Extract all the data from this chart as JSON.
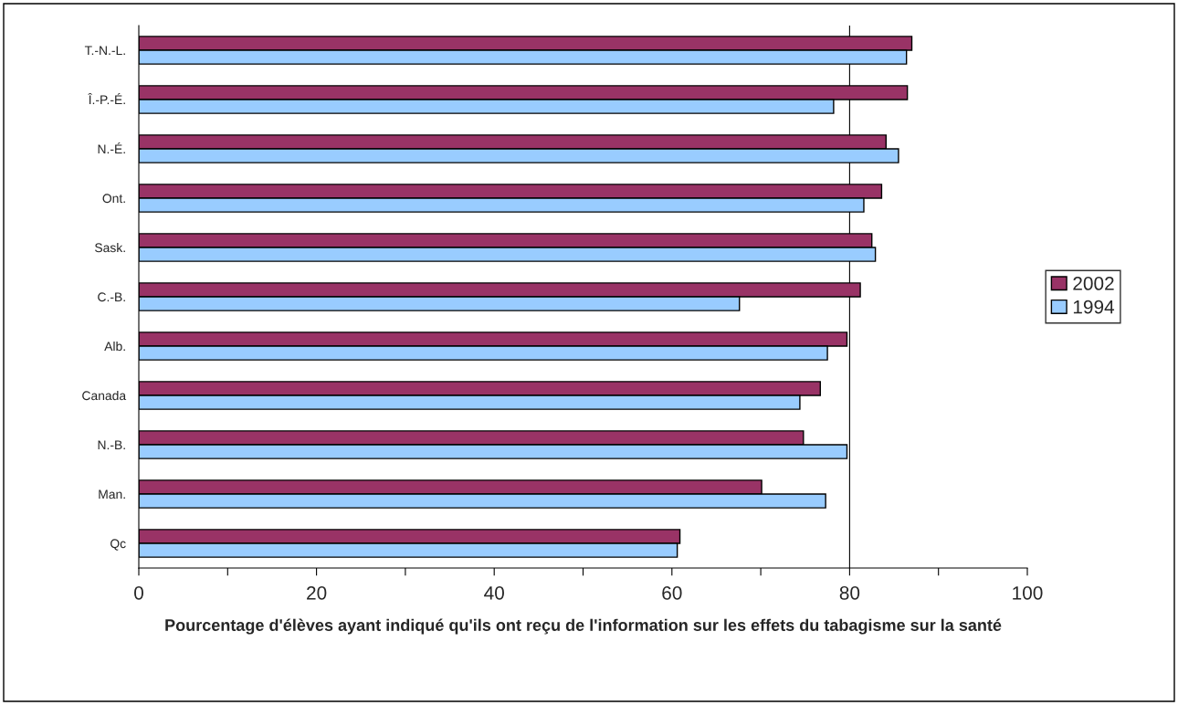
{
  "chart_data": {
    "type": "bar",
    "orientation": "horizontal",
    "xlabel": "Pourcentage d'élèves ayant indiqué qu'ils ont reçu de l'information sur les effets du tabagisme sur la santé",
    "categories": [
      "T.-N.-L.",
      "Î.-P.-É.",
      "N.-É.",
      "Ont.",
      "Sask.",
      "C.-B.",
      "Alb.",
      "Canada",
      "N.-B.",
      "Man.",
      "Qc"
    ],
    "series": [
      {
        "name": "2002",
        "color": "#993366",
        "values": [
          87.0,
          86.5,
          84.1,
          83.6,
          82.5,
          81.2,
          79.7,
          76.7,
          74.8,
          70.1,
          60.9
        ]
      },
      {
        "name": "1994",
        "color": "#99ccff",
        "values": [
          86.4,
          78.2,
          85.5,
          81.6,
          82.9,
          67.6,
          77.5,
          74.4,
          79.7,
          77.3,
          60.6
        ]
      }
    ],
    "xlim": [
      0,
      100
    ],
    "xticks": [
      0,
      {
        "value": 10,
        "label": null
      },
      20,
      {
        "value": 30,
        "label": null
      },
      40,
      {
        "value": 50,
        "label": null
      },
      60,
      {
        "value": 70,
        "label": null
      },
      80,
      {
        "value": 90,
        "label": null
      },
      100
    ],
    "ref_lines": [
      {
        "axis": "x",
        "value": 80,
        "label": null,
        "color": "#000000"
      }
    ],
    "grid": false,
    "legend": "right"
  }
}
